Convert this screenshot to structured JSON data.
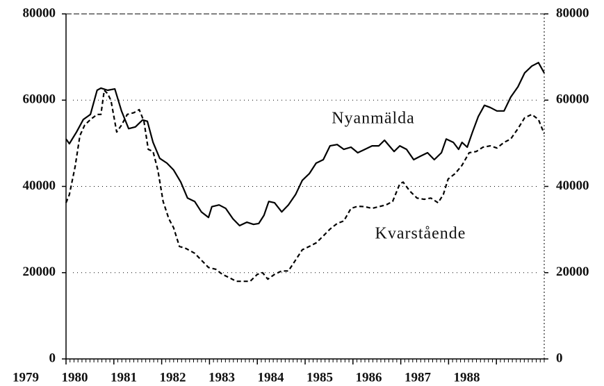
{
  "chart_data": {
    "type": "line",
    "xlim": [
      1979,
      1989
    ],
    "xticks": [
      1979,
      1980,
      1981,
      1982,
      1983,
      1984,
      1985,
      1986,
      1987,
      1988
    ],
    "ylim": [
      0,
      80000
    ],
    "yticks": [
      0,
      20000,
      40000,
      60000,
      80000
    ],
    "y2lim": [
      0,
      80000
    ],
    "y2ticks": [
      0,
      20000,
      40000,
      60000,
      80000
    ],
    "grid": true,
    "series": [
      {
        "name": "Nyanmälda",
        "color": "#000000",
        "dash": "solid",
        "x": [
          1979.0,
          1979.07,
          1979.22,
          1979.36,
          1979.51,
          1979.65,
          1979.73,
          1979.87,
          1980.02,
          1980.16,
          1980.31,
          1980.45,
          1980.6,
          1980.7,
          1980.82,
          1980.96,
          1981.11,
          1981.25,
          1981.4,
          1981.54,
          1981.69,
          1981.83,
          1981.98,
          1982.05,
          1982.2,
          1982.34,
          1982.49,
          1982.63,
          1982.78,
          1982.92,
          1983.03,
          1983.14,
          1983.24,
          1983.36,
          1983.51,
          1983.65,
          1983.8,
          1983.94,
          1984.09,
          1984.23,
          1984.38,
          1984.52,
          1984.67,
          1984.81,
          1984.96,
          1985.1,
          1985.25,
          1985.4,
          1985.54,
          1985.66,
          1985.76,
          1985.86,
          1985.98,
          1986.12,
          1986.27,
          1986.41,
          1986.56,
          1986.7,
          1986.85,
          1986.95,
          1987.1,
          1987.21,
          1987.28,
          1987.39,
          1987.5,
          1987.62,
          1987.75,
          1987.87,
          1988.01,
          1988.16,
          1988.3,
          1988.45,
          1988.59,
          1988.74,
          1988.88,
          1989.0
        ],
        "values": [
          51000,
          49900,
          52600,
          55500,
          56700,
          62300,
          62800,
          62300,
          62600,
          57500,
          53400,
          53800,
          55400,
          55100,
          50200,
          46500,
          45400,
          43800,
          41000,
          37300,
          36500,
          34100,
          32800,
          35300,
          35700,
          34900,
          32500,
          30900,
          31700,
          31200,
          31400,
          33300,
          36500,
          36200,
          34100,
          35700,
          38100,
          41400,
          43000,
          45400,
          46200,
          49400,
          49700,
          48600,
          49100,
          47800,
          48600,
          49400,
          49400,
          50700,
          49400,
          48100,
          49400,
          48600,
          46200,
          47000,
          47800,
          46200,
          47800,
          51000,
          50200,
          48600,
          50200,
          49100,
          52600,
          56200,
          58800,
          58300,
          57500,
          57500,
          60700,
          63100,
          66300,
          67900,
          68700,
          66300
        ]
      },
      {
        "name": "Kvarstående",
        "color": "#000000",
        "dash": "dashed",
        "x": [
          1979.0,
          1979.07,
          1979.19,
          1979.29,
          1979.39,
          1979.51,
          1979.65,
          1979.73,
          1979.8,
          1979.87,
          1979.94,
          1980.06,
          1980.16,
          1980.28,
          1980.42,
          1980.53,
          1980.63,
          1980.72,
          1980.82,
          1980.92,
          1981.03,
          1981.15,
          1981.25,
          1981.37,
          1981.51,
          1981.69,
          1981.83,
          1981.98,
          1982.13,
          1982.27,
          1982.42,
          1982.56,
          1982.71,
          1982.85,
          1983.0,
          1983.11,
          1983.22,
          1983.36,
          1983.51,
          1983.65,
          1983.8,
          1983.94,
          1984.09,
          1984.23,
          1984.38,
          1984.52,
          1984.67,
          1984.81,
          1984.96,
          1985.1,
          1985.25,
          1985.4,
          1985.54,
          1985.69,
          1985.83,
          1985.98,
          1986.05,
          1986.19,
          1986.34,
          1986.49,
          1986.63,
          1986.78,
          1986.89,
          1986.99,
          1987.14,
          1987.28,
          1987.43,
          1987.58,
          1987.72,
          1987.87,
          1988.01,
          1988.16,
          1988.3,
          1988.45,
          1988.59,
          1988.74,
          1988.88,
          1989.0
        ],
        "values": [
          36200,
          38100,
          44600,
          51800,
          54200,
          55500,
          56700,
          56700,
          62300,
          61500,
          59900,
          52600,
          54200,
          56700,
          57100,
          57800,
          55100,
          48600,
          48100,
          43800,
          36500,
          32500,
          30400,
          26100,
          25600,
          24500,
          22900,
          21200,
          20800,
          19600,
          18800,
          18000,
          18000,
          18000,
          19600,
          20000,
          18500,
          19600,
          20400,
          20400,
          22900,
          25300,
          26100,
          26900,
          28500,
          30100,
          31400,
          32000,
          34900,
          35400,
          35300,
          34900,
          35300,
          35700,
          36500,
          40600,
          41000,
          38900,
          37300,
          37000,
          37300,
          36200,
          38100,
          41700,
          43000,
          44900,
          47800,
          48100,
          49100,
          49400,
          48900,
          50200,
          51000,
          53400,
          55900,
          56700,
          55500,
          52200
        ]
      }
    ]
  }
}
